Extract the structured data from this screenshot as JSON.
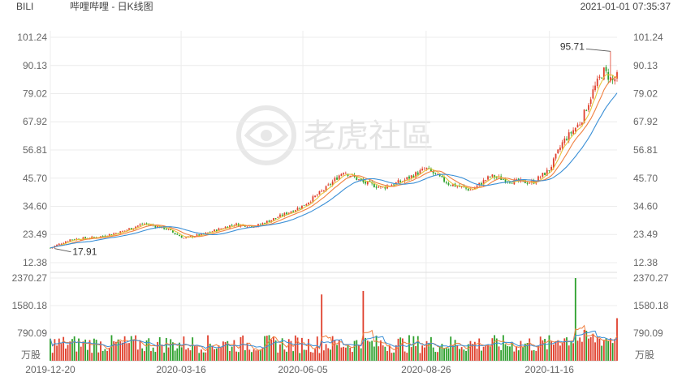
{
  "header": {
    "symbol": "BILI",
    "name": "哔哩哔哩 - 日K线图",
    "timestamp": "2021-01-01 07:35:37"
  },
  "watermark": {
    "text": "老虎社區"
  },
  "colors": {
    "up": "#e0402d",
    "down": "#2ca02c",
    "ma5": "#e8c43c",
    "ma10": "#f08040",
    "ma20": "#3a8fd6",
    "grid": "#ececec",
    "text": "#666666"
  },
  "chart_data": [
    {
      "type": "candlestick",
      "title": "哔哩哔哩 - 日K线图",
      "ylim": [
        12.38,
        101.24
      ],
      "y_ticks": [
        "101.24",
        "90.13",
        "79.02",
        "67.92",
        "56.81",
        "45.70",
        "34.60",
        "23.49",
        "12.38"
      ],
      "x_ticks": [
        "2019-12-20",
        "2020-03-16",
        "2020-06-05",
        "2020-08-26",
        "2020-11-16"
      ],
      "x_range": [
        "2019-12-20",
        "2020-12-31"
      ],
      "annotations": [
        {
          "label": "95.71",
          "value": 95.71,
          "note": "period high"
        },
        {
          "label": "17.91",
          "value": 17.91,
          "note": "period low"
        }
      ],
      "price_path": [
        {
          "date": "2019-12-20",
          "close": 18.2
        },
        {
          "date": "2020-01-02",
          "close": 21.5
        },
        {
          "date": "2020-01-20",
          "close": 22.4
        },
        {
          "date": "2020-02-05",
          "close": 24.5
        },
        {
          "date": "2020-02-20",
          "close": 27.8
        },
        {
          "date": "2020-03-05",
          "close": 26.0
        },
        {
          "date": "2020-03-18",
          "close": 22.0
        },
        {
          "date": "2020-04-01",
          "close": 23.8
        },
        {
          "date": "2020-04-20",
          "close": 27.5
        },
        {
          "date": "2020-05-05",
          "close": 26.8
        },
        {
          "date": "2020-05-20",
          "close": 30.5
        },
        {
          "date": "2020-06-05",
          "close": 34.8
        },
        {
          "date": "2020-06-20",
          "close": 41.5
        },
        {
          "date": "2020-07-02",
          "close": 48.5
        },
        {
          "date": "2020-07-15",
          "close": 44.0
        },
        {
          "date": "2020-07-28",
          "close": 42.0
        },
        {
          "date": "2020-08-10",
          "close": 44.5
        },
        {
          "date": "2020-08-26",
          "close": 49.5
        },
        {
          "date": "2020-09-10",
          "close": 43.5
        },
        {
          "date": "2020-09-25",
          "close": 41.0
        },
        {
          "date": "2020-10-08",
          "close": 46.5
        },
        {
          "date": "2020-10-22",
          "close": 44.5
        },
        {
          "date": "2020-11-05",
          "close": 44.0
        },
        {
          "date": "2020-11-16",
          "close": 49.0
        },
        {
          "date": "2020-11-25",
          "close": 60.0
        },
        {
          "date": "2020-12-07",
          "close": 68.0
        },
        {
          "date": "2020-12-15",
          "close": 80.0
        },
        {
          "date": "2020-12-22",
          "close": 88.0
        },
        {
          "date": "2020-12-28",
          "close": 84.0
        },
        {
          "date": "2020-12-31",
          "close": 85.7
        }
      ]
    },
    {
      "type": "bar",
      "unit_label": "万股",
      "ylim": [
        0,
        2370.27
      ],
      "y_ticks": [
        "2370.27",
        "1580.18",
        "790.09"
      ],
      "peaks": [
        {
          "date": "2020-06-18",
          "value": 1900,
          "color": "up"
        },
        {
          "date": "2020-07-15",
          "value": 2000,
          "color": "up"
        },
        {
          "date": "2020-12-03",
          "value": 2370,
          "color": "down"
        },
        {
          "date": "2020-12-31",
          "value": 1220,
          "color": "up"
        }
      ]
    }
  ]
}
